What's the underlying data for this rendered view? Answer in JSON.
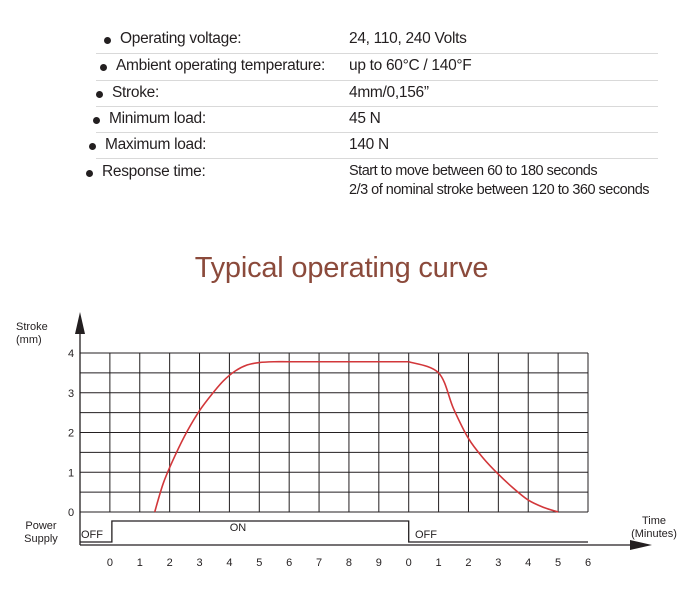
{
  "specs": [
    {
      "label": "Operating voltage:",
      "value": "24, 110, 240 Volts"
    },
    {
      "label": "Ambient operating temperature:",
      "value": "up to 60°C / 140°F"
    },
    {
      "label": "Stroke:",
      "value": "4mm/0,156”"
    },
    {
      "label": "Minimum load:",
      "value": "45 N"
    },
    {
      "label": "Maximum load:",
      "value": "140 N"
    },
    {
      "label": "Response time:",
      "value": "Start to move between 60 to 180 seconds",
      "value2": "2/3 of nominal stroke between 120 to 360 seconds"
    }
  ],
  "chart_data": {
    "type": "line",
    "title": "Typical operating curve",
    "ylabel": "Stroke\n(mm)",
    "xlabel": "Time\n(Minutes)",
    "ylim": [
      0,
      4
    ],
    "y_ticks": [
      "0",
      "1",
      "2",
      "3",
      "4"
    ],
    "x_ticks": [
      "0",
      "1",
      "2",
      "3",
      "4",
      "5",
      "6",
      "7",
      "8",
      "9",
      "0",
      "1",
      "2",
      "3",
      "4",
      "5",
      "6"
    ],
    "grid": true,
    "curve_color": "#d2373a",
    "series": [
      {
        "phase": "ON",
        "x": [
          1.5,
          1.8,
          2.2,
          2.6,
          3.0,
          3.4,
          3.8,
          4.2,
          4.6,
          5.0,
          5.5,
          6.0,
          7,
          8,
          9,
          10
        ],
        "values": [
          0,
          0.75,
          1.45,
          2.05,
          2.55,
          2.95,
          3.3,
          3.55,
          3.7,
          3.76,
          3.78,
          3.78,
          3.78,
          3.78,
          3.78,
          3.78
        ]
      },
      {
        "phase": "OFF",
        "x": [
          10,
          11,
          11.5,
          12,
          12.5,
          13,
          13.5,
          14,
          14.5,
          15
        ],
        "values": [
          3.78,
          3.5,
          2.6,
          1.85,
          1.35,
          0.95,
          0.6,
          0.3,
          0.12,
          0
        ]
      }
    ],
    "power_supply": {
      "label": "Power\nSupply",
      "states": [
        {
          "label": "OFF",
          "from": -1,
          "to": 0,
          "level": "low"
        },
        {
          "label": "ON",
          "from": 0,
          "to": 10,
          "level": "high"
        },
        {
          "label": "OFF",
          "from": 10,
          "to": 16,
          "level": "low"
        }
      ]
    }
  }
}
